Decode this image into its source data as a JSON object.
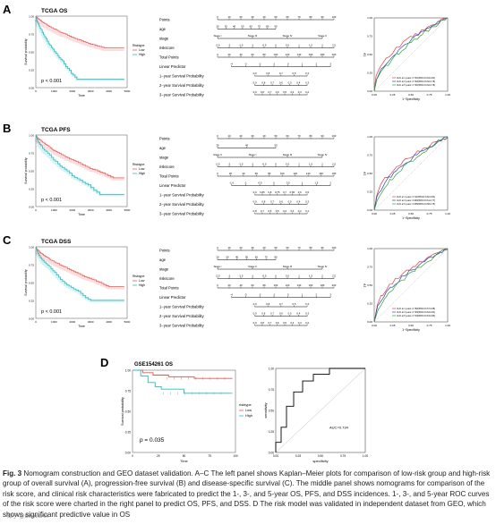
{
  "panels": [
    {
      "letter": "A",
      "title": "TCGA OS",
      "pvalue": "p < 0.001",
      "nomogram": [
        {
          "label": "Points",
          "ticks": [
            "0",
            "10",
            "20",
            "30",
            "40",
            "50",
            "60",
            "70",
            "80",
            "90",
            "100"
          ]
        },
        {
          "label": "age",
          "ticks": [
            "20",
            "30",
            "40",
            "50",
            "60",
            "70",
            "80",
            "90"
          ]
        },
        {
          "label": "stage",
          "ticks": [
            "Stage I",
            "Stage III",
            "Stage IV",
            "Stage II"
          ]
        },
        {
          "label": "riskscore",
          "ticks": [
            "-2.5",
            "-2",
            "-1.5",
            "-1",
            "-0.5",
            "0",
            "0.5",
            "1",
            "1.5",
            "2",
            "2.5"
          ]
        },
        {
          "label": "Total Points",
          "ticks": [
            "0",
            "20",
            "40",
            "60",
            "80",
            "100",
            "120",
            "140",
            "160",
            "180",
            "200"
          ]
        },
        {
          "label": "Linear Predictor",
          "ticks": [
            "-4",
            "-3",
            "-2",
            "-1",
            "0",
            "1",
            "2",
            "3"
          ]
        },
        {
          "label": "1−year Survival Probability",
          "ticks": [
            "0.9",
            "0.8",
            "0.7",
            "0.5",
            "0.3"
          ]
        },
        {
          "label": "2−year Survival Probability",
          "ticks": [
            "0.9",
            "0.8",
            "0.7",
            "0.6",
            "0.5",
            "0.4",
            "0.3"
          ]
        },
        {
          "label": "3−year Survival Probability",
          "ticks": [
            "0.9",
            "0.8",
            "0.7",
            "0.6",
            "0.5",
            "0.4",
            "0.3",
            "0.2"
          ]
        }
      ],
      "roc_legend": [
        "AUC at 1 years: 0.731(95%CI:0.64-0.81)",
        "AUC at 3 years: 0.702(95%CI:0.62-0.78)",
        "AUC at 5 years: 0.701(95%CI:0.62-0.78)"
      ]
    },
    {
      "letter": "B",
      "title": "TCGA PFS",
      "pvalue": "p < 0.001",
      "nomogram": [
        {
          "label": "Points",
          "ticks": [
            "0",
            "10",
            "20",
            "30",
            "40",
            "50",
            "60",
            "70",
            "80",
            "90",
            "100"
          ]
        },
        {
          "label": "age",
          "ticks": [
            "30",
            "40",
            "50"
          ]
        },
        {
          "label": "stage",
          "ticks": [
            "Stage II",
            "Stage I",
            "Stage III",
            "Stage IV"
          ]
        },
        {
          "label": "riskscore",
          "ticks": [
            "-2.5",
            "-2",
            "-1.5",
            "-1",
            "-0.5",
            "0",
            "0.5",
            "1",
            "1.5",
            "2",
            "2.5"
          ]
        },
        {
          "label": "Total Points",
          "ticks": [
            "0",
            "20",
            "40",
            "60",
            "80",
            "100",
            "120",
            "140",
            "160",
            "180"
          ]
        },
        {
          "label": "Linear Predictor",
          "ticks": [
            "-1.6",
            "-1",
            "-0.5",
            "0",
            "0.5",
            "1",
            "1.5",
            "2"
          ]
        },
        {
          "label": "1−year Survival Probability",
          "ticks": [
            "0.9",
            "0.85",
            "0.8",
            "0.75",
            "0.7",
            "0.65",
            "0.6",
            "0.5"
          ]
        },
        {
          "label": "2−year Survival Probability",
          "ticks": [
            "0.9",
            "0.8",
            "0.7",
            "0.6",
            "0.5",
            "0.4",
            "0.3"
          ]
        },
        {
          "label": "3−year Survival Probability",
          "ticks": [
            "0.8",
            "0.7",
            "0.6",
            "0.5",
            "0.4",
            "0.3",
            "0.2",
            "0.1"
          ]
        }
      ],
      "roc_legend": [
        "AUC at 1 years: 0.711(95%CI:0.62-0.80)",
        "AUC at 3 years: 0.690(95%CI:0.61-0.77)",
        "AUC at 5 years: 0.665(95%CI:0.58-0.75)"
      ]
    },
    {
      "letter": "C",
      "title": "TCGA DSS",
      "pvalue": "p < 0.001",
      "nomogram": [
        {
          "label": "Points",
          "ticks": [
            "0",
            "10",
            "20",
            "30",
            "40",
            "50",
            "60",
            "70",
            "80",
            "90",
            "100"
          ]
        },
        {
          "label": "age",
          "ticks": [
            "20",
            "30",
            "40",
            "50",
            "60",
            "70",
            "80"
          ]
        },
        {
          "label": "stage",
          "ticks": [
            "Stage I",
            "Stage II",
            "Stage III",
            "Stage IV"
          ]
        },
        {
          "label": "riskscore",
          "ticks": [
            "-2.5",
            "-2",
            "-1.5",
            "-1",
            "-0.5",
            "0",
            "0.5",
            "1",
            "1.5",
            "2",
            "2.5"
          ]
        },
        {
          "label": "Total Points",
          "ticks": [
            "0",
            "20",
            "40",
            "60",
            "80",
            "100",
            "120",
            "140",
            "160",
            "180",
            "200"
          ]
        },
        {
          "label": "Linear Predictor",
          "ticks": [
            "-4",
            "-3",
            "-2",
            "-1",
            "0",
            "1",
            "2",
            "3"
          ]
        },
        {
          "label": "1−year Survival Probability",
          "ticks": [
            "0.9",
            "0.8",
            "0.7",
            "0.5",
            "0.3"
          ]
        },
        {
          "label": "2−year Survival Probability",
          "ticks": [
            "0.9",
            "0.8",
            "0.7",
            "0.6",
            "0.5",
            "0.4",
            "0.3"
          ]
        },
        {
          "label": "3−year Survival Probability",
          "ticks": [
            "0.9",
            "0.8",
            "0.7",
            "0.6",
            "0.5",
            "0.4",
            "0.3",
            "0.2"
          ]
        }
      ],
      "roc_legend": [
        "AUC at 1 years: 0.760(95%CI:0.67-0.85)",
        "AUC at 3 years: 0.726(95%CI:0.64-0.81)",
        "AUC at 5 years: 0.719(95%CI:0.63-0.80)"
      ]
    }
  ],
  "km_common": {
    "ylabel": "Survival probability",
    "xlabel": "Time",
    "legend_title": "Risktype",
    "legend_items": [
      "Low",
      "High"
    ],
    "xticks": [
      "0",
      "1000",
      "2000",
      "3000",
      "4000",
      "5000"
    ],
    "yticks": [
      "0.00",
      "0.25",
      "0.50",
      "0.75",
      "1.00"
    ]
  },
  "roc_common": {
    "xlabel": "1−Specificity",
    "ylabel": "TP",
    "ticks": [
      "0.00",
      "0.25",
      "0.50",
      "0.75",
      "1.00"
    ]
  },
  "panel_d": {
    "letter": "D",
    "title": "GSE154261 OS",
    "pvalue": "p = 0.035",
    "ylabel": "Survival probability",
    "xlabel": "Time",
    "xticks": [
      "0",
      "25",
      "50",
      "75",
      "100"
    ],
    "yticks": [
      "0.00",
      "0.25",
      "0.50",
      "0.75",
      "1.00"
    ],
    "legend_title": "risktype",
    "legend_items": [
      "Low",
      "High"
    ],
    "roc_auc": "AUC=0.734",
    "roc_xlabel": "specificity",
    "roc_ylabel": "sensitivity",
    "roc_ticks": [
      "0.00",
      "0.25",
      "0.50",
      "0.75",
      "1.00"
    ]
  },
  "caption": {
    "label": "Fig. 3",
    "text": "Nomogram construction and GEO dataset validation. A–C The left panel shows Kaplan–Meier plots for comparison of low-risk group and high-risk group of overall survival (A), progression-free survival (B) and disease-specific survival (C). The middle panel shows nomograms for comparison of the risk score, and clinical risk characteristics were fabricated to predict the 1-, 3-, and 5-year OS, PFS, and DSS incidences. 1-, 3-, and 5-year ROC curves of the risk score were charted in the right panel to predict OS, PFS, and DSS. D The risk model was validated in independent dataset from GEO, which shows significant predictive value in OS"
  },
  "watermark": "知乎 @BioinfoArt"
}
